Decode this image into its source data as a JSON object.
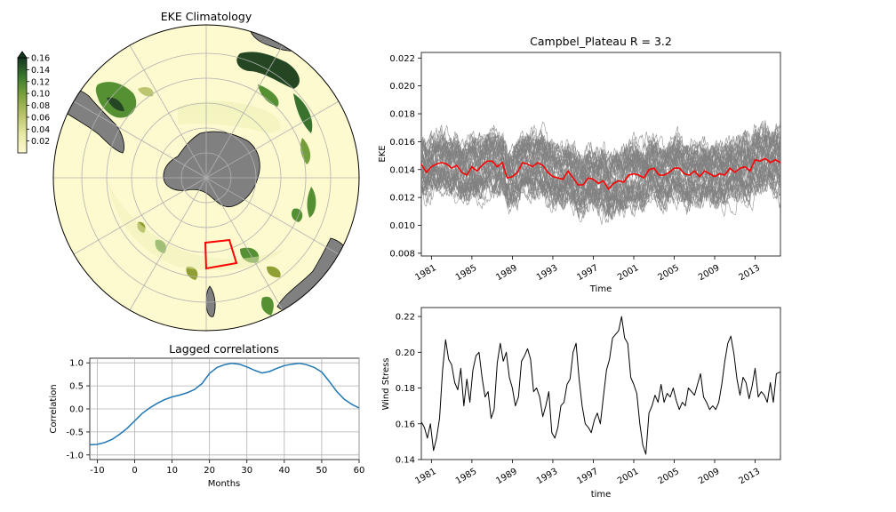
{
  "figure": {
    "colors": {
      "ocean_light": "#fdfacf",
      "land": "#808080",
      "eke_dark": "#1a3d1a",
      "eke_mid": "#4c8b2b",
      "eke_olive": "#8a9a2b",
      "box": "#ff0000",
      "ensemble": "#808080",
      "mean": "#ff0000",
      "corr_line": "#1f77b4",
      "wind_line": "#000000"
    }
  },
  "chart_data": [
    {
      "id": "eke-map",
      "type": "heatmap",
      "title": "EKE Climatology",
      "projection": "south-polar-stereographic",
      "colorbar": {
        "ticks": [
          "0.16",
          "0.14",
          "0.12",
          "0.10",
          "0.08",
          "0.06",
          "0.04",
          "0.02"
        ],
        "range": [
          0,
          0.16
        ],
        "extend": "max",
        "colormap": "cream-to-dark-green"
      },
      "region_box": "Campbell Plateau (red outline)"
    },
    {
      "id": "eke-timeseries",
      "type": "line",
      "title": "Campbel_Plateau R = 3.2",
      "xlabel": "Time",
      "ylabel": "EKE",
      "xlim": [
        1980.0,
        2015.5
      ],
      "ylim": [
        0.0078,
        0.0224
      ],
      "yticks": [
        "0.008",
        "0.010",
        "0.012",
        "0.014",
        "0.016",
        "0.018",
        "0.020",
        "0.022"
      ],
      "xticks": [
        "1981",
        "1985",
        "1989",
        "1993",
        "1997",
        "2001",
        "2005",
        "2009",
        "2013"
      ],
      "grid": false,
      "ensemble_members": 50,
      "series": [
        {
          "role": "ensemble-mean",
          "x": [
            1980.0,
            1980.5,
            1981.0,
            1981.5,
            1982.0,
            1982.5,
            1983.0,
            1983.5,
            1984.0,
            1984.5,
            1985.0,
            1985.5,
            1986.0,
            1986.5,
            1987.0,
            1987.5,
            1988.0,
            1988.5,
            1989.0,
            1989.5,
            1990.0,
            1990.5,
            1991.0,
            1991.5,
            1992.0,
            1992.5,
            1993.0,
            1993.5,
            1994.0,
            1994.5,
            1995.0,
            1995.5,
            1996.0,
            1996.5,
            1997.0,
            1997.5,
            1998.0,
            1998.5,
            1999.0,
            1999.5,
            2000.0,
            2000.5,
            2001.0,
            2001.5,
            2002.0,
            2002.5,
            2003.0,
            2003.5,
            2004.0,
            2004.5,
            2005.0,
            2005.5,
            2006.0,
            2006.5,
            2007.0,
            2007.5,
            2008.0,
            2008.5,
            2009.0,
            2009.5,
            2010.0,
            2010.5,
            2011.0,
            2011.5,
            2012.0,
            2012.5,
            2013.0,
            2013.5,
            2014.0,
            2014.5,
            2015.0,
            2015.5
          ],
          "values": [
            0.0144,
            0.0138,
            0.0142,
            0.0144,
            0.0145,
            0.0144,
            0.0141,
            0.0143,
            0.0138,
            0.0136,
            0.0142,
            0.0139,
            0.0143,
            0.0146,
            0.0146,
            0.0142,
            0.0145,
            0.0134,
            0.0135,
            0.0138,
            0.0145,
            0.0144,
            0.0142,
            0.0145,
            0.0143,
            0.0138,
            0.0135,
            0.0134,
            0.0133,
            0.0139,
            0.0134,
            0.0129,
            0.0129,
            0.0134,
            0.0133,
            0.013,
            0.0132,
            0.0126,
            0.013,
            0.0132,
            0.0131,
            0.0136,
            0.0137,
            0.0136,
            0.0134,
            0.014,
            0.0141,
            0.0136,
            0.0136,
            0.0138,
            0.0141,
            0.0141,
            0.0137,
            0.0136,
            0.0139,
            0.0135,
            0.0139,
            0.0137,
            0.0135,
            0.0137,
            0.0136,
            0.0141,
            0.0138,
            0.0141,
            0.0142,
            0.0139,
            0.0147,
            0.0146,
            0.0148,
            0.0145,
            0.0147,
            0.0145
          ]
        }
      ]
    },
    {
      "id": "lagged-corr",
      "type": "line",
      "title": "Lagged correlations",
      "xlabel": "Months",
      "ylabel": "Correlation",
      "xlim": [
        -12,
        60
      ],
      "ylim": [
        -1.1,
        1.1
      ],
      "xticks": [
        "-10",
        "0",
        "10",
        "20",
        "30",
        "40",
        "50",
        "60"
      ],
      "yticks": [
        "1.0",
        "0.5",
        "0.0",
        "-0.5",
        "-1.0"
      ],
      "grid": true,
      "series": [
        {
          "x": [
            -12,
            -10,
            -8,
            -6,
            -4,
            -2,
            0,
            2,
            4,
            6,
            8,
            10,
            12,
            14,
            16,
            18,
            20,
            22,
            24,
            26,
            28,
            30,
            32,
            34,
            36,
            38,
            40,
            42,
            44,
            46,
            48,
            50,
            52,
            54,
            56,
            58,
            60
          ],
          "values": [
            -0.78,
            -0.77,
            -0.73,
            -0.66,
            -0.55,
            -0.42,
            -0.26,
            -0.1,
            0.02,
            0.12,
            0.2,
            0.26,
            0.3,
            0.35,
            0.42,
            0.55,
            0.77,
            0.9,
            0.96,
            0.99,
            0.97,
            0.91,
            0.84,
            0.78,
            0.81,
            0.88,
            0.94,
            0.97,
            0.99,
            0.96,
            0.9,
            0.8,
            0.6,
            0.38,
            0.21,
            0.1,
            0.02
          ]
        }
      ]
    },
    {
      "id": "wind-stress",
      "type": "line",
      "title": "",
      "xlabel": "time",
      "ylabel": "Wind Stress",
      "xlim": [
        1980.0,
        2015.5
      ],
      "ylim": [
        0.14,
        0.225
      ],
      "xticks": [
        "1981",
        "1985",
        "1989",
        "1993",
        "1997",
        "2001",
        "2005",
        "2009",
        "2013"
      ],
      "yticks": [
        "0.22",
        "0.20",
        "0.18",
        "0.16",
        "0.14"
      ],
      "grid": false,
      "series": [
        {
          "x": [
            1980.0,
            1980.3,
            1980.6,
            1980.9,
            1981.2,
            1981.5,
            1981.8,
            1982.1,
            1982.4,
            1982.7,
            1983.0,
            1983.3,
            1983.6,
            1983.9,
            1984.2,
            1984.5,
            1984.8,
            1985.1,
            1985.4,
            1985.7,
            1986.0,
            1986.3,
            1986.6,
            1986.9,
            1987.2,
            1987.5,
            1987.8,
            1988.1,
            1988.4,
            1988.7,
            1989.0,
            1989.3,
            1989.6,
            1989.9,
            1990.2,
            1990.5,
            1990.8,
            1991.1,
            1991.4,
            1991.7,
            1992.0,
            1992.3,
            1992.6,
            1992.9,
            1993.2,
            1993.5,
            1993.8,
            1994.1,
            1994.4,
            1994.7,
            1995.0,
            1995.3,
            1995.6,
            1995.9,
            1996.2,
            1996.5,
            1996.8,
            1997.1,
            1997.4,
            1997.7,
            1998.0,
            1998.3,
            1998.6,
            1998.9,
            1999.2,
            1999.5,
            1999.8,
            2000.1,
            2000.4,
            2000.7,
            2001.0,
            2001.3,
            2001.6,
            2001.9,
            2002.2,
            2002.5,
            2002.8,
            2003.1,
            2003.4,
            2003.7,
            2004.0,
            2004.3,
            2004.6,
            2004.9,
            2005.2,
            2005.5,
            2005.8,
            2006.1,
            2006.4,
            2006.7,
            2007.0,
            2007.3,
            2007.6,
            2007.9,
            2008.2,
            2008.5,
            2008.8,
            2009.1,
            2009.4,
            2009.7,
            2010.0,
            2010.3,
            2010.6,
            2010.9,
            2011.2,
            2011.5,
            2011.8,
            2012.1,
            2012.4,
            2012.7,
            2013.0,
            2013.3,
            2013.6,
            2013.9,
            2014.2,
            2014.5,
            2014.8,
            2015.1,
            2015.5
          ],
          "values": [
            0.161,
            0.158,
            0.152,
            0.16,
            0.145,
            0.152,
            0.163,
            0.19,
            0.207,
            0.196,
            0.193,
            0.183,
            0.179,
            0.191,
            0.17,
            0.185,
            0.172,
            0.19,
            0.198,
            0.2,
            0.186,
            0.175,
            0.178,
            0.163,
            0.168,
            0.194,
            0.205,
            0.195,
            0.2,
            0.186,
            0.18,
            0.17,
            0.175,
            0.195,
            0.198,
            0.202,
            0.196,
            0.178,
            0.18,
            0.175,
            0.164,
            0.17,
            0.178,
            0.155,
            0.152,
            0.158,
            0.17,
            0.172,
            0.182,
            0.185,
            0.2,
            0.205,
            0.185,
            0.17,
            0.16,
            0.158,
            0.155,
            0.162,
            0.166,
            0.16,
            0.175,
            0.19,
            0.196,
            0.208,
            0.21,
            0.212,
            0.22,
            0.208,
            0.205,
            0.186,
            0.182,
            0.177,
            0.16,
            0.148,
            0.143,
            0.166,
            0.17,
            0.176,
            0.172,
            0.182,
            0.172,
            0.177,
            0.175,
            0.18,
            0.173,
            0.168,
            0.172,
            0.17,
            0.18,
            0.178,
            0.176,
            0.182,
            0.188,
            0.175,
            0.172,
            0.168,
            0.17,
            0.168,
            0.172,
            0.182,
            0.195,
            0.205,
            0.209,
            0.199,
            0.185,
            0.176,
            0.186,
            0.183,
            0.174,
            0.181,
            0.191,
            0.175,
            0.178,
            0.176,
            0.172,
            0.183,
            0.172,
            0.188,
            0.189
          ]
        }
      ]
    }
  ]
}
